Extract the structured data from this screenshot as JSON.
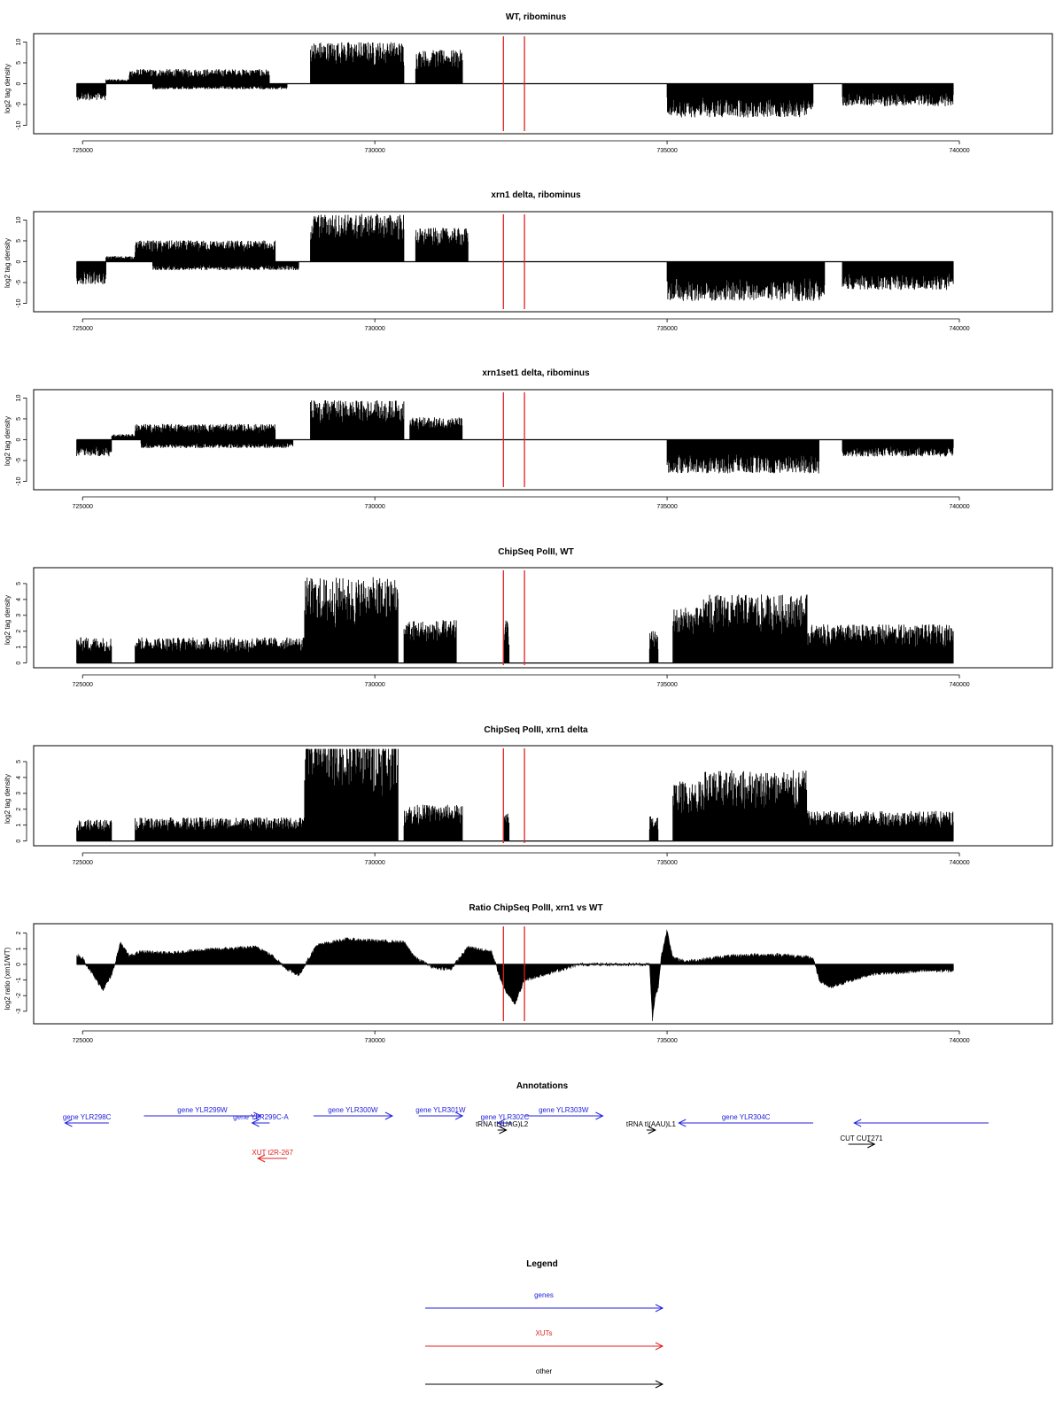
{
  "xaxis": {
    "min": 724800,
    "max": 740500,
    "ticks": [
      725000,
      730000,
      735000,
      740000
    ],
    "tick_labels": [
      "725000",
      "730000",
      "735000",
      "740000"
    ]
  },
  "markers": {
    "color": "#e02020",
    "positions": [
      732200,
      732560
    ]
  },
  "colors": {
    "bars": "#000000",
    "gene": "#2222dd",
    "xut": "#e02020",
    "other": "#000000"
  },
  "chart_data": [
    {
      "type": "bar",
      "title": "WT, ribominus",
      "ylabel": "log2 tag density",
      "ylim": [
        -12,
        12
      ],
      "yticks": [
        10,
        5,
        0,
        -5,
        -10
      ],
      "ytick_labels": [
        "10",
        "5",
        "0",
        "-5",
        "-10"
      ],
      "regions": [
        {
          "x0": 724900,
          "x1": 725400,
          "sign": -1,
          "mean": 3
        },
        {
          "x0": 725400,
          "x1": 726000,
          "sign": 1,
          "mean": 0.8
        },
        {
          "x0": 725800,
          "x1": 728200,
          "sign": 1,
          "mean": 2.6
        },
        {
          "x0": 726200,
          "x1": 728500,
          "sign": -1,
          "mean": 1
        },
        {
          "x0": 728900,
          "x1": 730500,
          "sign": 1,
          "mean": 7.5
        },
        {
          "x0": 730700,
          "x1": 731500,
          "sign": 1,
          "mean": 6
        },
        {
          "x0": 735000,
          "x1": 737500,
          "sign": -1,
          "mean": 6
        },
        {
          "x0": 738000,
          "x1": 739900,
          "sign": -1,
          "mean": 4
        }
      ]
    },
    {
      "type": "bar",
      "title": "xrn1 delta, ribominus",
      "ylabel": "log2 tag density",
      "ylim": [
        -12,
        12
      ],
      "yticks": [
        10,
        5,
        0,
        -5,
        -10
      ],
      "ytick_labels": [
        "10",
        "5",
        "0",
        "-5",
        "-10"
      ],
      "regions": [
        {
          "x0": 724900,
          "x1": 725400,
          "sign": -1,
          "mean": 4
        },
        {
          "x0": 725400,
          "x1": 726000,
          "sign": 1,
          "mean": 1
        },
        {
          "x0": 725900,
          "x1": 728300,
          "sign": 1,
          "mean": 3.8
        },
        {
          "x0": 726200,
          "x1": 728700,
          "sign": -1,
          "mean": 1.5
        },
        {
          "x0": 728900,
          "x1": 730500,
          "sign": 1,
          "mean": 8.5
        },
        {
          "x0": 730700,
          "x1": 731600,
          "sign": 1,
          "mean": 6
        },
        {
          "x0": 735000,
          "x1": 737700,
          "sign": -1,
          "mean": 7
        },
        {
          "x0": 738000,
          "x1": 739900,
          "sign": -1,
          "mean": 5
        }
      ]
    },
    {
      "type": "bar",
      "title": "xrn1set1 delta, ribominus",
      "ylabel": "log2 tag density",
      "ylim": [
        -12,
        12
      ],
      "yticks": [
        10,
        5,
        0,
        -5,
        -10
      ],
      "ytick_labels": [
        "10",
        "5",
        "0",
        "-5",
        "-10"
      ],
      "regions": [
        {
          "x0": 724900,
          "x1": 725500,
          "sign": -1,
          "mean": 3
        },
        {
          "x0": 725500,
          "x1": 726000,
          "sign": 1,
          "mean": 1
        },
        {
          "x0": 725900,
          "x1": 728300,
          "sign": 1,
          "mean": 2.8
        },
        {
          "x0": 726000,
          "x1": 728600,
          "sign": -1,
          "mean": 1.5
        },
        {
          "x0": 728900,
          "x1": 730500,
          "sign": 1,
          "mean": 7
        },
        {
          "x0": 730600,
          "x1": 731500,
          "sign": 1,
          "mean": 4
        },
        {
          "x0": 735000,
          "x1": 737600,
          "sign": -1,
          "mean": 6
        },
        {
          "x0": 738000,
          "x1": 739900,
          "sign": -1,
          "mean": 3
        }
      ]
    },
    {
      "type": "bar",
      "title": "ChipSeq PolII, WT",
      "ylabel": "log2 tag density",
      "ylim": [
        -0.3,
        6
      ],
      "yticks": [
        0,
        1,
        2,
        3,
        4,
        5
      ],
      "ytick_labels": [
        "0",
        "1",
        "2",
        "3",
        "4",
        "5"
      ],
      "regions": [
        {
          "x0": 724900,
          "x1": 725500,
          "sign": 1,
          "mean": 1.2
        },
        {
          "x0": 725900,
          "x1": 728800,
          "sign": 1,
          "mean": 1.2
        },
        {
          "x0": 728800,
          "x1": 730400,
          "sign": 1,
          "mean": 4
        },
        {
          "x0": 730500,
          "x1": 731400,
          "sign": 1,
          "mean": 2
        },
        {
          "x0": 732200,
          "x1": 732300,
          "sign": 1,
          "mean": 2
        },
        {
          "x0": 734700,
          "x1": 734850,
          "sign": 1,
          "mean": 1.5
        },
        {
          "x0": 735100,
          "x1": 735600,
          "sign": 1,
          "mean": 2.6
        },
        {
          "x0": 735600,
          "x1": 737400,
          "sign": 1,
          "mean": 3.2
        },
        {
          "x0": 737400,
          "x1": 739900,
          "sign": 1,
          "mean": 1.8
        }
      ]
    },
    {
      "type": "bar",
      "title": "ChipSeq PolII, xrn1 delta",
      "ylabel": "log2 tag density",
      "ylim": [
        -0.3,
        6
      ],
      "yticks": [
        0,
        1,
        2,
        3,
        4,
        5
      ],
      "ytick_labels": [
        "0",
        "1",
        "2",
        "3",
        "4",
        "5"
      ],
      "regions": [
        {
          "x0": 724900,
          "x1": 725500,
          "sign": 1,
          "mean": 1
        },
        {
          "x0": 725900,
          "x1": 728800,
          "sign": 1,
          "mean": 1.1
        },
        {
          "x0": 728800,
          "x1": 730400,
          "sign": 1,
          "mean": 5
        },
        {
          "x0": 730500,
          "x1": 731500,
          "sign": 1,
          "mean": 1.7
        },
        {
          "x0": 732200,
          "x1": 732300,
          "sign": 1,
          "mean": 1.3
        },
        {
          "x0": 734700,
          "x1": 734850,
          "sign": 1,
          "mean": 1.2
        },
        {
          "x0": 735100,
          "x1": 735600,
          "sign": 1,
          "mean": 2.8
        },
        {
          "x0": 735600,
          "x1": 737400,
          "sign": 1,
          "mean": 3.3
        },
        {
          "x0": 737400,
          "x1": 739900,
          "sign": 1,
          "mean": 1.4
        }
      ]
    },
    {
      "type": "area",
      "title": "Ratio ChipSeq PolII, xrn1 vs WT",
      "ylabel": "log2 ratio (xrn1/WT)",
      "ylim": [
        -3.8,
        2.6
      ],
      "yticks": [
        2,
        1,
        0,
        -1,
        -2,
        -3
      ],
      "ytick_labels": [
        "2",
        "1",
        "0",
        "-1",
        "-2",
        "-3"
      ],
      "series": [
        {
          "x": [
            724900,
            725000,
            725200,
            725350,
            725500,
            725650,
            725800,
            726000,
            726500,
            727000,
            727500,
            728000,
            728300,
            728500,
            728700,
            729000,
            729500,
            730000,
            730500,
            730700,
            731000,
            731300,
            731600,
            732000,
            732200,
            732400,
            732560,
            733500,
            734700,
            734750,
            734800,
            734850,
            734900,
            735000,
            735100,
            735300,
            735600,
            736000,
            736500,
            737000,
            737500,
            737600,
            737800,
            738000,
            738500,
            739000,
            739500,
            739900
          ],
          "values": [
            0.6,
            0.4,
            -0.8,
            -1.6,
            -0.7,
            1.4,
            0.5,
            0.8,
            0.7,
            0.9,
            1.0,
            1.1,
            0.4,
            -0.3,
            -0.7,
            1.2,
            1.6,
            1.5,
            1.4,
            0.4,
            -0.2,
            -0.3,
            1.1,
            0.8,
            -1.5,
            -2.5,
            -1.0,
            0.0,
            0.0,
            -3.5,
            -2.0,
            -1.5,
            0.5,
            2.2,
            0.4,
            0.2,
            0.3,
            0.5,
            0.6,
            0.6,
            0.4,
            -1.0,
            -1.5,
            -1.2,
            -0.6,
            -0.5,
            -0.4,
            -0.4
          ]
        }
      ]
    }
  ],
  "annotations": {
    "title": "Annotations",
    "features": [
      {
        "label": "gene YLR298C",
        "kind": "gene",
        "x0": 724700,
        "x1": 725450,
        "dir": -1,
        "row": 0
      },
      {
        "label": "gene YLR299W",
        "kind": "gene",
        "x0": 726050,
        "x1": 728050,
        "dir": 1,
        "row": -1
      },
      {
        "label": "gene YLR299C-A",
        "kind": "gene",
        "x0": 727900,
        "x1": 728200,
        "dir": -1,
        "row": 0
      },
      {
        "label": "gene YLR300W",
        "kind": "gene",
        "x0": 728950,
        "x1": 730300,
        "dir": 1,
        "row": -1
      },
      {
        "label": "gene YLR301W",
        "kind": "gene",
        "x0": 730750,
        "x1": 731500,
        "dir": 1,
        "row": -1
      },
      {
        "label": "gene YLR302C",
        "kind": "gene",
        "x0": 732100,
        "x1": 732350,
        "dir": -1,
        "row": 0
      },
      {
        "label": "gene YLR303W",
        "kind": "gene",
        "x0": 732560,
        "x1": 733900,
        "dir": 1,
        "row": -1
      },
      {
        "label": "tRNA tL(UAG)L2",
        "kind": "other",
        "x0": 732100,
        "x1": 732250,
        "dir": 1,
        "row": 1
      },
      {
        "label": "tRNA tI(AAU)L1",
        "kind": "other",
        "x0": 734650,
        "x1": 734800,
        "dir": 1,
        "row": 1
      },
      {
        "label": "gene YLR304C",
        "kind": "gene",
        "x0": 735200,
        "x1": 737500,
        "dir": -1,
        "row": 0
      },
      {
        "label": "",
        "kind": "gene",
        "x0": 738200,
        "x1": 740500,
        "dir": -1,
        "row": 0
      },
      {
        "label": "CUT CUT271",
        "kind": "other",
        "x0": 738100,
        "x1": 738550,
        "dir": 1,
        "row": 3
      },
      {
        "label": "XUT t2R-267",
        "kind": "xut",
        "x0": 728000,
        "x1": 728500,
        "dir": -1,
        "row": 5
      }
    ]
  },
  "legend": {
    "title": "Legend",
    "items": [
      {
        "label": "genes",
        "kind": "gene"
      },
      {
        "label": "XUTs",
        "kind": "xut"
      },
      {
        "label": "other",
        "kind": "other"
      }
    ]
  }
}
